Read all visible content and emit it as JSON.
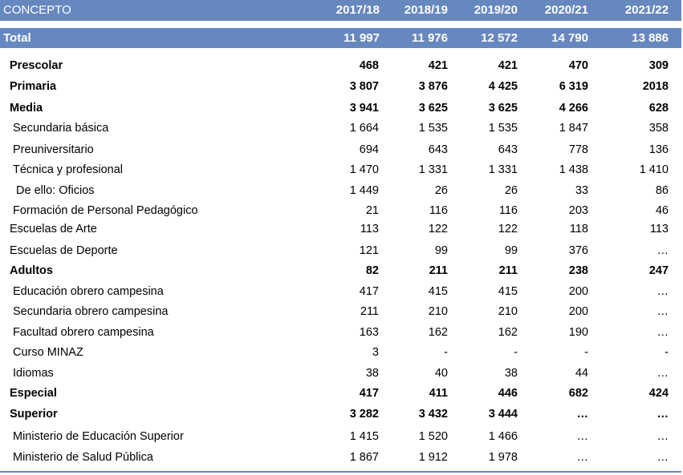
{
  "header": {
    "concept": "CONCEPTO",
    "years": [
      "2017/18",
      "2018/19",
      "2019/20",
      "2020/21",
      "2021/22"
    ]
  },
  "total": {
    "label": "Total",
    "values": [
      "11 997",
      "11 976",
      "12 572",
      "14 790",
      "13 886"
    ]
  },
  "rows": [
    {
      "label": "Prescolar",
      "bold": true,
      "indent": 0,
      "values": [
        "468",
        "421",
        "421",
        "470",
        "309"
      ]
    },
    {
      "label": "Primaria",
      "bold": true,
      "indent": 0,
      "values": [
        "3 807",
        "3 876",
        "4 425",
        "6 319",
        "2018"
      ]
    },
    {
      "label": "Media",
      "bold": true,
      "indent": 0,
      "values": [
        "3 941",
        "3 625",
        "3 625",
        "4 266",
        "628"
      ]
    },
    {
      "label": "Secundaria básica",
      "bold": false,
      "indent": 1,
      "values": [
        "1 664",
        "1 535",
        "1 535",
        "1 847",
        "358"
      ]
    },
    {
      "label": "Preuniversitario",
      "bold": false,
      "indent": 1,
      "values": [
        "694",
        "643",
        "643",
        "778",
        "136"
      ]
    },
    {
      "label": "Técnica y profesional",
      "bold": false,
      "indent": 1,
      "values": [
        "1 470",
        "1 331",
        "1 331",
        "1 438",
        "1 410"
      ]
    },
    {
      "label": "De ello: Oficios",
      "bold": false,
      "indent": 2,
      "values": [
        "1 449",
        "26",
        "26",
        "33",
        "86"
      ]
    },
    {
      "label": "Formación de Personal Pedagógico",
      "bold": false,
      "indent": 1,
      "values": [
        "21",
        "116",
        "116",
        "203",
        "46"
      ]
    },
    {
      "label": "Escuelas de Arte",
      "bold": false,
      "indent": 0,
      "values": [
        "113",
        "122",
        "122",
        "118",
        "113"
      ]
    },
    {
      "label": "Escuelas de Deporte",
      "bold": false,
      "indent": 0,
      "values": [
        "121",
        "99",
        "99",
        "376",
        "…"
      ]
    },
    {
      "label": "Adultos",
      "bold": true,
      "indent": 0,
      "values": [
        "82",
        "211",
        "211",
        "238",
        "247"
      ]
    },
    {
      "label": "Educación obrero campesina",
      "bold": false,
      "indent": 1,
      "values": [
        "417",
        "415",
        "415",
        "200",
        "…"
      ]
    },
    {
      "label": "Secundaria obrero campesina",
      "bold": false,
      "indent": 1,
      "values": [
        "211",
        "210",
        "210",
        "200",
        "…"
      ]
    },
    {
      "label": "Facultad  obrero campesina",
      "bold": false,
      "indent": 1,
      "values": [
        "163",
        "162",
        "162",
        "190",
        "…"
      ]
    },
    {
      "label": "Curso MINAZ",
      "bold": false,
      "indent": 1,
      "values": [
        "3",
        "-",
        "-",
        "-",
        "-"
      ]
    },
    {
      "label": "Idiomas",
      "bold": false,
      "indent": 1,
      "values": [
        "38",
        "40",
        "38",
        "44",
        "…"
      ]
    },
    {
      "label": "Especial",
      "bold": true,
      "indent": 0,
      "values": [
        "417",
        "411",
        "446",
        "682",
        "424"
      ]
    },
    {
      "label": "Superior",
      "bold": true,
      "indent": 0,
      "values": [
        "3 282",
        "3 432",
        "3 444",
        "…",
        "…"
      ]
    },
    {
      "label": "Ministerio de Educación Superior",
      "bold": false,
      "indent": 1,
      "values": [
        "1 415",
        "1 520",
        "1 466",
        "…",
        "…"
      ]
    },
    {
      "label": "Ministerio de Salud Pública",
      "bold": false,
      "indent": 1,
      "values": [
        "1 867",
        "1 912",
        "1 978",
        "…",
        "…"
      ]
    }
  ]
}
